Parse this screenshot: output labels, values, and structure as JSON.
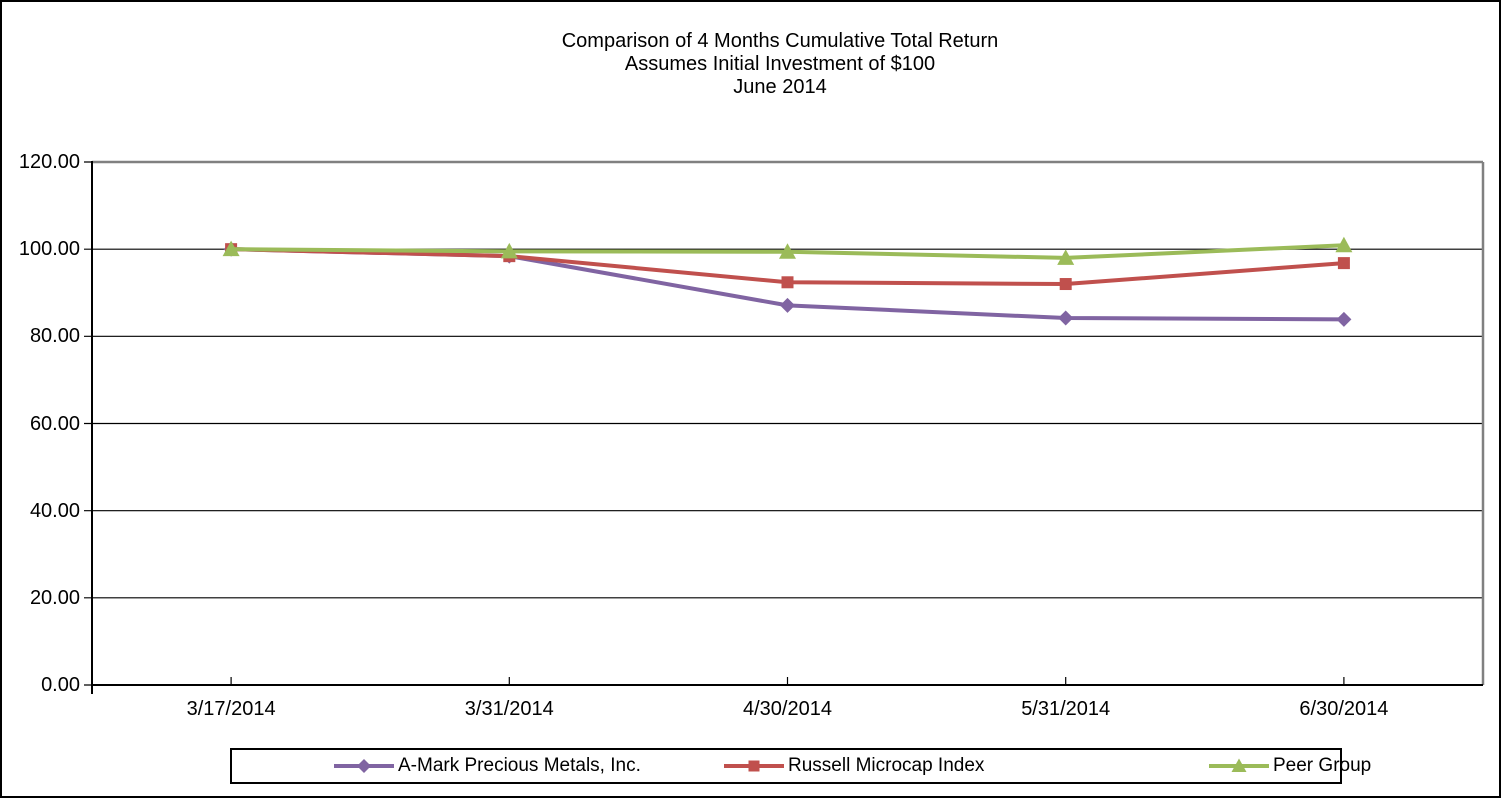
{
  "window": {
    "background": "#ffffff",
    "border_color": "#000000"
  },
  "chart_data": {
    "type": "line",
    "title": "Comparison of 4 Months Cumulative Total Return",
    "subtitle": "Assumes Initial Investment of $100",
    "date_line": "June 2014",
    "categories": [
      "3/17/2014",
      "3/31/2014",
      "4/30/2014",
      "5/31/2014",
      "6/30/2014"
    ],
    "series": [
      {
        "name": "A-Mark Precious Metals, Inc.",
        "color": "#8064A2",
        "marker": "diamond",
        "values": [
          100.0,
          98.4,
          87.1,
          84.2,
          83.9
        ]
      },
      {
        "name": "Russell Microcap Index",
        "color": "#C0504D",
        "marker": "square",
        "values": [
          100.0,
          98.4,
          92.4,
          92.0,
          96.8
        ]
      },
      {
        "name": "Peer Group",
        "color": "#9BBB59",
        "marker": "triangle",
        "values": [
          100.0,
          99.5,
          99.4,
          98.0,
          100.9
        ]
      }
    ],
    "xlabel": "",
    "ylabel": "",
    "ylim": [
      0,
      120
    ],
    "y_tick_step": 20,
    "y_tick_labels": [
      "0.00",
      "20.00",
      "40.00",
      "60.00",
      "80.00",
      "100.00",
      "120.00"
    ],
    "grid": true,
    "legend_position": "bottom",
    "axis_color": "#000000",
    "gridline_color": "#000000",
    "plot_border_color": "#808080"
  }
}
